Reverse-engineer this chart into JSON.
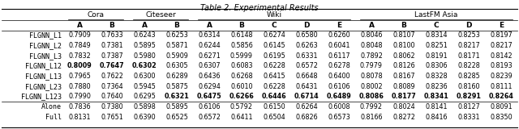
{
  "title": "Table 2. Experimental Results",
  "col_groups": [
    {
      "label": "Cora",
      "start": 0,
      "end": 2
    },
    {
      "label": "Citeseer",
      "start": 2,
      "end": 4
    },
    {
      "label": "Wiki",
      "start": 4,
      "end": 9
    },
    {
      "label": "LastFM Asia",
      "start": 9,
      "end": 14
    }
  ],
  "row_labels": [
    "FLGNN_L1",
    "FLGNN_L2",
    "FLGNN_L3",
    "FLGNN_L12",
    "FLGNN_L13",
    "FLGNN_L23",
    "FLGNN_L123",
    "Alone",
    "Full"
  ],
  "separator_after_row": 6,
  "data": {
    "FLGNN_L1": [
      0.7909,
      0.7633,
      0.6243,
      0.6253,
      0.6314,
      0.6148,
      0.6274,
      0.658,
      0.626,
      0.8046,
      0.8107,
      0.8314,
      0.8253,
      0.8197
    ],
    "FLGNN_L2": [
      0.7849,
      0.7381,
      0.5895,
      0.5871,
      0.6244,
      0.5856,
      0.6145,
      0.6263,
      0.6041,
      0.8048,
      0.81,
      0.8251,
      0.8217,
      0.8217
    ],
    "FLGNN_L3": [
      0.7832,
      0.7387,
      0.598,
      0.5909,
      0.6271,
      0.5999,
      0.6195,
      0.6331,
      0.6117,
      0.7892,
      0.8062,
      0.8191,
      0.8171,
      0.8142
    ],
    "FLGNN_L12": [
      0.8009,
      0.7647,
      0.6302,
      0.6305,
      0.6307,
      0.6083,
      0.6228,
      0.6572,
      0.6278,
      0.7979,
      0.8126,
      0.8306,
      0.8228,
      0.8193
    ],
    "FLGNN_L13": [
      0.7965,
      0.7622,
      0.63,
      0.6289,
      0.6436,
      0.6268,
      0.6415,
      0.6648,
      0.64,
      0.8078,
      0.8167,
      0.8328,
      0.8285,
      0.8239
    ],
    "FLGNN_L23": [
      0.788,
      0.7364,
      0.5945,
      0.5875,
      0.6294,
      0.601,
      0.6228,
      0.6431,
      0.6106,
      0.8002,
      0.8089,
      0.8236,
      0.816,
      0.8111
    ],
    "FLGNN_L123": [
      0.799,
      0.764,
      0.6295,
      0.6321,
      0.6475,
      0.6266,
      0.6446,
      0.6714,
      0.6489,
      0.8086,
      0.8177,
      0.8341,
      0.8291,
      0.8264
    ],
    "Alone": [
      0.7836,
      0.738,
      0.5898,
      0.5895,
      0.6106,
      0.5792,
      0.615,
      0.6264,
      0.6008,
      0.7992,
      0.8024,
      0.8141,
      0.8127,
      0.8091
    ],
    "Full": [
      0.8131,
      0.7651,
      0.639,
      0.6525,
      0.6572,
      0.6411,
      0.6504,
      0.6826,
      0.6573,
      0.8166,
      0.8272,
      0.8416,
      0.8331,
      0.835
    ]
  },
  "bold": {
    "FLGNN_L12": [
      0,
      1,
      2
    ],
    "FLGNN_L123": [
      3,
      4,
      5,
      6,
      7,
      8,
      9,
      10,
      11,
      12,
      13
    ]
  },
  "col_headers": [
    "A",
    "B",
    "A",
    "B",
    "A",
    "B",
    "C",
    "D",
    "E",
    "A",
    "B",
    "C",
    "D",
    "E"
  ],
  "title_fontsize": 7,
  "header_fontsize": 6.5,
  "data_fontsize": 5.8,
  "label_fontsize": 6.0
}
